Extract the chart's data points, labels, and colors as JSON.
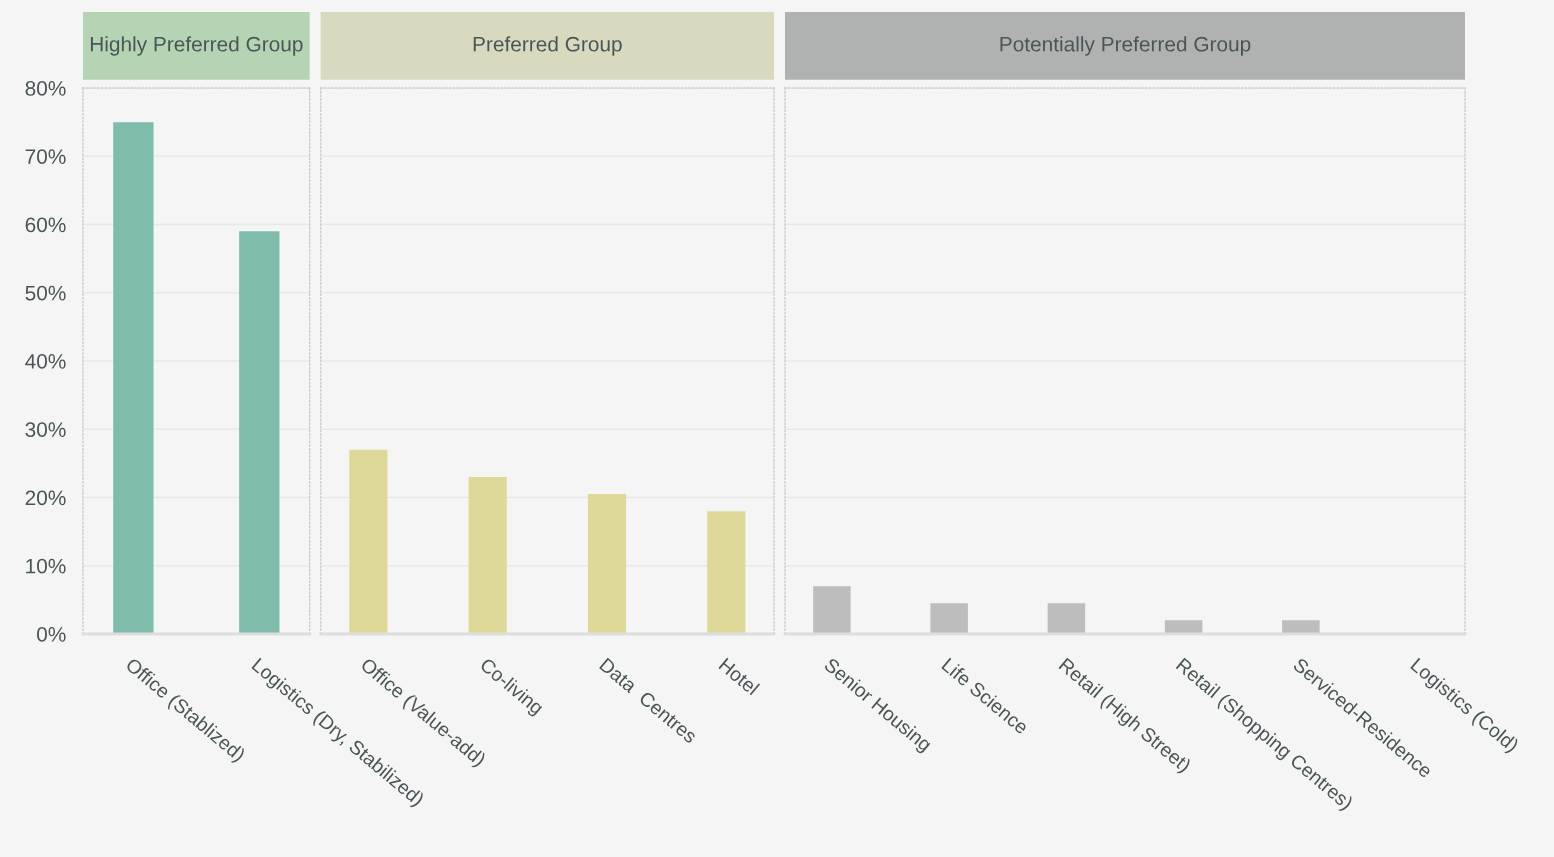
{
  "chart_data": [
    {
      "type": "bar",
      "title": "Highly Preferred Group",
      "categories": [
        "Office (Stablized)",
        "Logistics (Dry, Stabilized)"
      ],
      "values": [
        75,
        59
      ],
      "colors": [
        "#7fbcac",
        "#7fbcac"
      ],
      "ylim": [
        0,
        80
      ],
      "yticks": [
        {
          "value": 0,
          "label": "0%"
        },
        {
          "value": 10,
          "label": "10%"
        },
        {
          "value": 20,
          "label": "20%"
        },
        {
          "value": 30,
          "label": "30%"
        },
        {
          "value": 40,
          "label": "40%"
        },
        {
          "value": 50,
          "label": "50%"
        },
        {
          "value": 60,
          "label": "60%"
        },
        {
          "value": 70,
          "label": "70%"
        },
        {
          "value": 80,
          "label": "80%"
        }
      ],
      "grid": "y"
    },
    {
      "type": "bar",
      "title": "Preferred Group",
      "categories": [
        "Office (Value-add)",
        "Co-living",
        "Data  Centres",
        "Hotel"
      ],
      "values": [
        27,
        23,
        20.5,
        18
      ],
      "colors": [
        "#ded998",
        "#ded998",
        "#ded998",
        "#ded998"
      ],
      "ylim": [
        0,
        80
      ],
      "yticks": [
        {
          "value": 0,
          "label": null
        },
        {
          "value": 10,
          "label": null
        },
        {
          "value": 20,
          "label": null
        },
        {
          "value": 30,
          "label": null
        },
        {
          "value": 40,
          "label": null
        },
        {
          "value": 50,
          "label": null
        },
        {
          "value": 60,
          "label": null
        },
        {
          "value": 70,
          "label": null
        },
        {
          "value": 80,
          "label": null
        }
      ],
      "grid": "y",
      "tick_labels": "x"
    },
    {
      "type": "bar",
      "title": "Potentially Preferred Group",
      "categories": [
        "Senior Housing",
        "Life Science",
        "Retail (High Street)",
        "Retail (Shopping Centres)",
        "Serviced-Residence",
        "Logistics (Cold)"
      ],
      "values": [
        7,
        4.5,
        4.5,
        2,
        2,
        0
      ],
      "colors": [
        "#bdbdbd",
        "#bdbdbd",
        "#bdbdbd",
        "#bdbdbd",
        "#bdbdbd",
        "#bdbdbd"
      ],
      "ylim": [
        0,
        80
      ],
      "yticks": [
        {
          "value": 0,
          "label": null
        },
        {
          "value": 10,
          "label": null
        },
        {
          "value": 20,
          "label": null
        },
        {
          "value": 30,
          "label": null
        },
        {
          "value": 40,
          "label": null
        },
        {
          "value": 50,
          "label": null
        },
        {
          "value": 60,
          "label": null
        },
        {
          "value": 70,
          "label": null
        },
        {
          "value": 80,
          "label": null
        }
      ],
      "grid": "y",
      "tick_labels": "x"
    }
  ]
}
